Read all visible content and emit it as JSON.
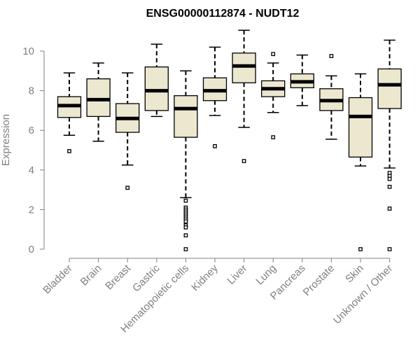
{
  "chart_data": {
    "type": "box",
    "title": "ENSG00000112874 - NUDT12",
    "xlabel": "",
    "ylabel": "Expression",
    "ylim": [
      0,
      11.2
    ],
    "yticks": [
      0,
      2,
      4,
      6,
      8,
      10
    ],
    "grid": false,
    "box_fill": "#ece7cf",
    "categories": [
      "Bladder",
      "Brain",
      "Breast",
      "Gastric",
      "Hematopoietic cells",
      "Kidney",
      "Liver",
      "Lung",
      "Pancreas",
      "Prostate",
      "Skin",
      "Unknown / Other"
    ],
    "boxes": [
      {
        "label": "Bladder",
        "min": 5.75,
        "q1": 6.65,
        "median": 7.25,
        "q3": 7.7,
        "max": 8.9,
        "outliers": [
          4.95
        ]
      },
      {
        "label": "Brain",
        "min": 5.45,
        "q1": 6.7,
        "median": 7.55,
        "q3": 8.6,
        "max": 9.4,
        "outliers": []
      },
      {
        "label": "Breast",
        "min": 4.25,
        "q1": 5.9,
        "median": 6.6,
        "q3": 7.35,
        "max": 8.9,
        "outliers": [
          3.1
        ]
      },
      {
        "label": "Gastric",
        "min": 6.7,
        "q1": 7.0,
        "median": 8.0,
        "q3": 9.2,
        "max": 10.35,
        "outliers": []
      },
      {
        "label": "Hematopoietic cells",
        "min": 2.6,
        "q1": 5.65,
        "median": 7.1,
        "q3": 7.75,
        "max": 9.0,
        "outliers": [
          2.45,
          2.1,
          2.0,
          1.9,
          1.8,
          1.7,
          1.6,
          1.5,
          1.4,
          1.2,
          1.1,
          0.7,
          0.0
        ]
      },
      {
        "label": "Kidney",
        "min": 6.75,
        "q1": 7.5,
        "median": 8.0,
        "q3": 8.65,
        "max": 10.2,
        "outliers": [
          5.2
        ]
      },
      {
        "label": "Liver",
        "min": 6.15,
        "q1": 8.4,
        "median": 9.25,
        "q3": 9.9,
        "max": 11.05,
        "outliers": [
          4.45
        ]
      },
      {
        "label": "Lung",
        "min": 6.9,
        "q1": 7.7,
        "median": 8.1,
        "q3": 8.5,
        "max": 9.4,
        "outliers": [
          9.85,
          5.65
        ]
      },
      {
        "label": "Pancreas",
        "min": 7.25,
        "q1": 8.15,
        "median": 8.45,
        "q3": 8.85,
        "max": 9.8,
        "outliers": []
      },
      {
        "label": "Prostate",
        "min": 5.55,
        "q1": 7.0,
        "median": 7.5,
        "q3": 8.1,
        "max": 8.75,
        "outliers": [
          9.75
        ]
      },
      {
        "label": "Skin",
        "min": 4.2,
        "q1": 4.65,
        "median": 6.7,
        "q3": 7.65,
        "max": 8.85,
        "outliers": [
          0.0
        ]
      },
      {
        "label": "Unknown / Other",
        "min": 4.1,
        "q1": 7.1,
        "median": 8.3,
        "q3": 9.1,
        "max": 10.55,
        "outliers": [
          3.85,
          3.7,
          3.55,
          3.15,
          2.05,
          0.0
        ]
      }
    ]
  }
}
